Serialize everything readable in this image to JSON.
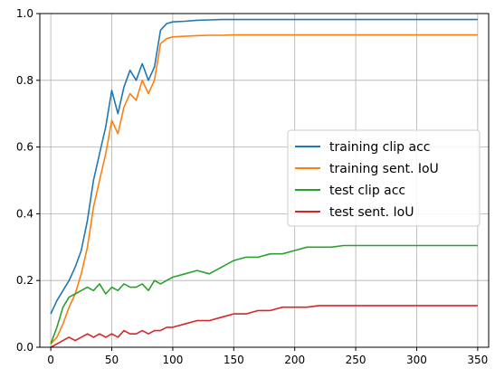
{
  "chart_data": {
    "type": "line",
    "title": "",
    "xlabel": "",
    "ylabel": "",
    "xlim": [
      -9,
      359
    ],
    "ylim": [
      0,
      1
    ],
    "xticks": [
      0,
      50,
      100,
      150,
      200,
      250,
      300,
      350
    ],
    "yticks": [
      0.0,
      0.2,
      0.4,
      0.6,
      0.8,
      1.0
    ],
    "ytick_labels": [
      "0.0",
      "0.2",
      "0.4",
      "0.6",
      "0.8",
      "1.0"
    ],
    "grid": true,
    "legend_position": "center-right",
    "series": [
      {
        "name": "training clip acc",
        "color": "#1f77b4",
        "x": [
          0,
          5,
          10,
          15,
          20,
          25,
          30,
          35,
          40,
          45,
          50,
          55,
          60,
          65,
          70,
          75,
          80,
          85,
          90,
          95,
          100,
          110,
          120,
          130,
          140,
          150,
          200,
          250,
          300,
          350
        ],
        "y": [
          0.1,
          0.14,
          0.17,
          0.2,
          0.24,
          0.29,
          0.38,
          0.5,
          0.58,
          0.66,
          0.77,
          0.7,
          0.78,
          0.83,
          0.8,
          0.85,
          0.8,
          0.84,
          0.95,
          0.97,
          0.975,
          0.977,
          0.98,
          0.981,
          0.982,
          0.982,
          0.982,
          0.982,
          0.982,
          0.982
        ]
      },
      {
        "name": "training sent. IoU",
        "color": "#ff7f0e",
        "x": [
          0,
          5,
          10,
          15,
          20,
          25,
          30,
          35,
          40,
          45,
          50,
          55,
          60,
          65,
          70,
          75,
          80,
          85,
          90,
          95,
          100,
          110,
          120,
          130,
          140,
          150,
          200,
          250,
          300,
          350
        ],
        "y": [
          0.01,
          0.03,
          0.07,
          0.12,
          0.16,
          0.22,
          0.3,
          0.42,
          0.5,
          0.58,
          0.68,
          0.64,
          0.72,
          0.76,
          0.74,
          0.8,
          0.76,
          0.8,
          0.91,
          0.925,
          0.93,
          0.932,
          0.934,
          0.935,
          0.935,
          0.936,
          0.936,
          0.936,
          0.936,
          0.936
        ]
      },
      {
        "name": "test clip acc",
        "color": "#2ca02c",
        "x": [
          0,
          5,
          10,
          15,
          20,
          25,
          30,
          35,
          40,
          45,
          50,
          55,
          60,
          65,
          70,
          75,
          80,
          85,
          90,
          95,
          100,
          110,
          120,
          130,
          140,
          150,
          160,
          170,
          180,
          190,
          200,
          210,
          220,
          230,
          240,
          250,
          275,
          300,
          325,
          350
        ],
        "y": [
          0.01,
          0.06,
          0.12,
          0.15,
          0.16,
          0.17,
          0.18,
          0.17,
          0.19,
          0.16,
          0.18,
          0.17,
          0.19,
          0.18,
          0.18,
          0.19,
          0.17,
          0.2,
          0.19,
          0.2,
          0.21,
          0.22,
          0.23,
          0.22,
          0.24,
          0.26,
          0.27,
          0.27,
          0.28,
          0.28,
          0.29,
          0.3,
          0.3,
          0.3,
          0.305,
          0.305,
          0.305,
          0.305,
          0.305,
          0.305
        ]
      },
      {
        "name": "test sent. IoU",
        "color": "#d62728",
        "x": [
          0,
          5,
          10,
          15,
          20,
          25,
          30,
          35,
          40,
          45,
          50,
          55,
          60,
          65,
          70,
          75,
          80,
          85,
          90,
          95,
          100,
          110,
          120,
          130,
          140,
          150,
          160,
          170,
          180,
          190,
          200,
          210,
          220,
          230,
          240,
          250,
          275,
          300,
          325,
          350
        ],
        "y": [
          0.0,
          0.01,
          0.02,
          0.03,
          0.02,
          0.03,
          0.04,
          0.03,
          0.04,
          0.03,
          0.04,
          0.03,
          0.05,
          0.04,
          0.04,
          0.05,
          0.04,
          0.05,
          0.05,
          0.06,
          0.06,
          0.07,
          0.08,
          0.08,
          0.09,
          0.1,
          0.1,
          0.11,
          0.11,
          0.12,
          0.12,
          0.12,
          0.125,
          0.125,
          0.125,
          0.125,
          0.125,
          0.125,
          0.125,
          0.125
        ]
      }
    ]
  }
}
